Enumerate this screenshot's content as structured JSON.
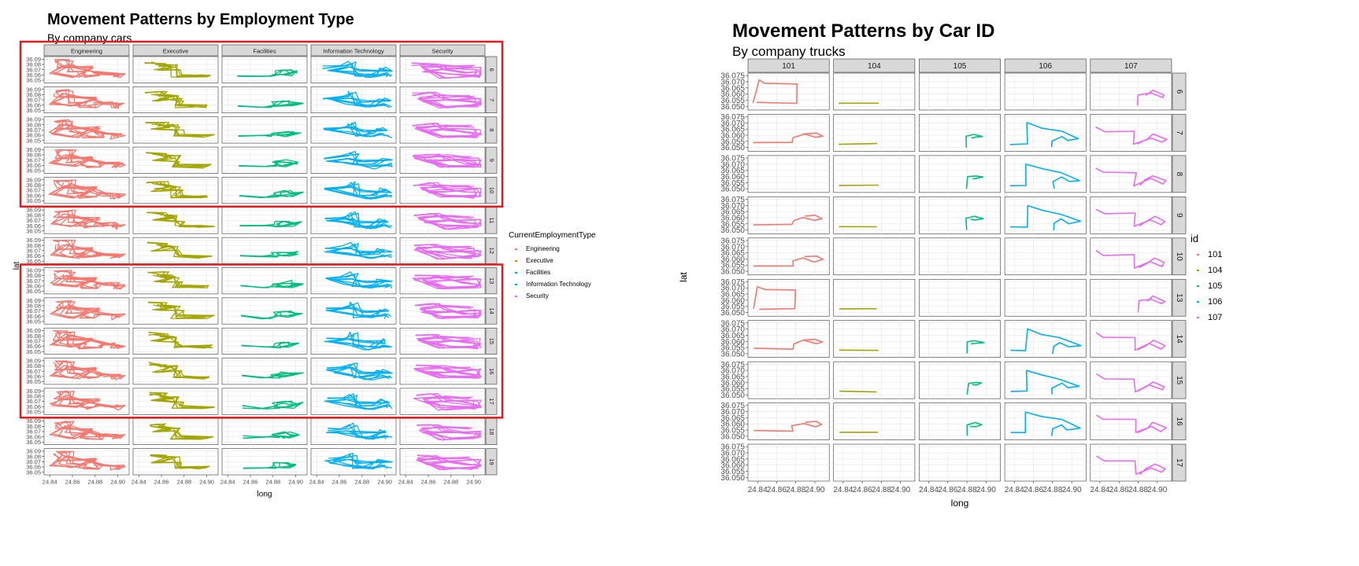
{
  "chart_data": [
    {
      "type": "line",
      "title": "Movement Patterns by Employment Type",
      "subtitle": "By company cars",
      "xlabel": "long",
      "ylabel": "lat",
      "col_facets": [
        "Engineering",
        "Executive",
        "Facilities",
        "Information Technology",
        "Security"
      ],
      "row_facets": [
        "6",
        "7",
        "8",
        "9",
        "10",
        "11",
        "12",
        "13",
        "14",
        "15",
        "16",
        "17",
        "18",
        "19"
      ],
      "x_ticks": [
        "24.84",
        "24.86",
        "24.88",
        "24.90"
      ],
      "y_ticks": [
        "36.05",
        "36.06",
        "36.07",
        "36.08",
        "36.09"
      ],
      "xlim": [
        24.835,
        24.91
      ],
      "ylim": [
        36.045,
        36.095
      ],
      "legend": {
        "title": "CurrentEmploymentType",
        "position": "right",
        "entries": [
          {
            "name": "Engineering",
            "color": "#F8766D"
          },
          {
            "name": "Executive",
            "color": "#A3A500"
          },
          {
            "name": "Facilities",
            "color": "#00BF7D"
          },
          {
            "name": "Information Technology",
            "color": "#00B0F6"
          },
          {
            "name": "Security",
            "color": "#E76BF3"
          }
        ]
      },
      "highlight_boxes": [
        {
          "rows": [
            "6",
            "7",
            "8",
            "9",
            "10"
          ]
        },
        {
          "rows": [
            "13",
            "14",
            "15",
            "16",
            "17"
          ]
        }
      ],
      "highlight_color": "#E41A1C",
      "grid": true
    },
    {
      "type": "line",
      "title": "Movement Patterns by Car ID",
      "subtitle": "By company trucks",
      "xlabel": "long",
      "ylabel": "lat",
      "col_facets": [
        "101",
        "104",
        "105",
        "106",
        "107"
      ],
      "row_facets": [
        "6",
        "7",
        "8",
        "9",
        "10",
        "13",
        "14",
        "15",
        "16",
        "17"
      ],
      "x_ticks": [
        "24.84",
        "24.86",
        "24.88",
        "24.90"
      ],
      "y_ticks": [
        "36.050",
        "36.055",
        "36.060",
        "36.065",
        "36.070",
        "36.075"
      ],
      "xlim": [
        24.83,
        24.915
      ],
      "ylim": [
        36.047,
        36.077
      ],
      "legend": {
        "title": "id",
        "position": "right",
        "entries": [
          {
            "name": "101",
            "color": "#F8766D"
          },
          {
            "name": "104",
            "color": "#A3A500"
          },
          {
            "name": "105",
            "color": "#00BF7D"
          },
          {
            "name": "106",
            "color": "#00B0F6"
          },
          {
            "name": "107",
            "color": "#E76BF3"
          }
        ]
      },
      "present": [
        [
          1,
          1,
          0,
          0,
          1
        ],
        [
          1,
          1,
          1,
          1,
          1
        ],
        [
          0,
          1,
          1,
          1,
          1
        ],
        [
          1,
          1,
          1,
          1,
          1
        ],
        [
          1,
          0,
          0,
          0,
          1
        ],
        [
          1,
          1,
          0,
          0,
          1
        ],
        [
          1,
          1,
          1,
          1,
          1
        ],
        [
          0,
          1,
          1,
          1,
          1
        ],
        [
          1,
          1,
          1,
          1,
          1
        ],
        [
          0,
          0,
          0,
          0,
          1
        ]
      ],
      "grid": true
    }
  ]
}
